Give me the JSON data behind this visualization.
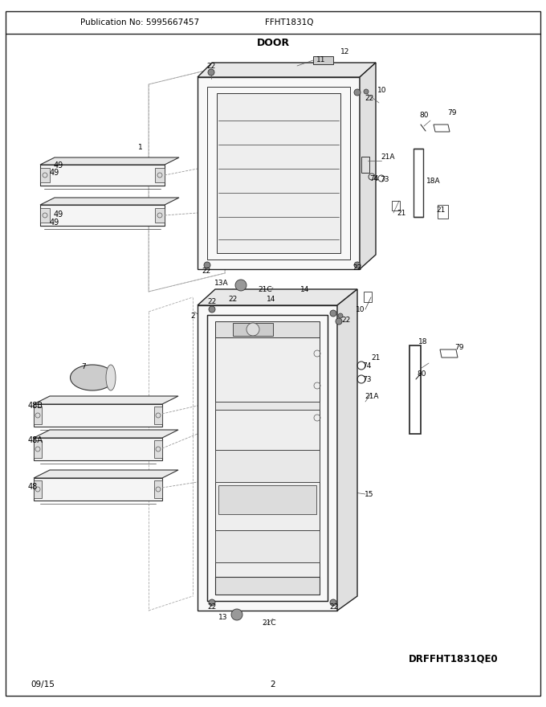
{
  "title_section": "DOOR",
  "pub_no": "Publication No: 5995667457",
  "model": "FFHT1831Q",
  "diagram_id": "DRFFHT1831QE0",
  "date": "09/15",
  "page": "2",
  "background": "#ffffff",
  "text_color": "#000000"
}
